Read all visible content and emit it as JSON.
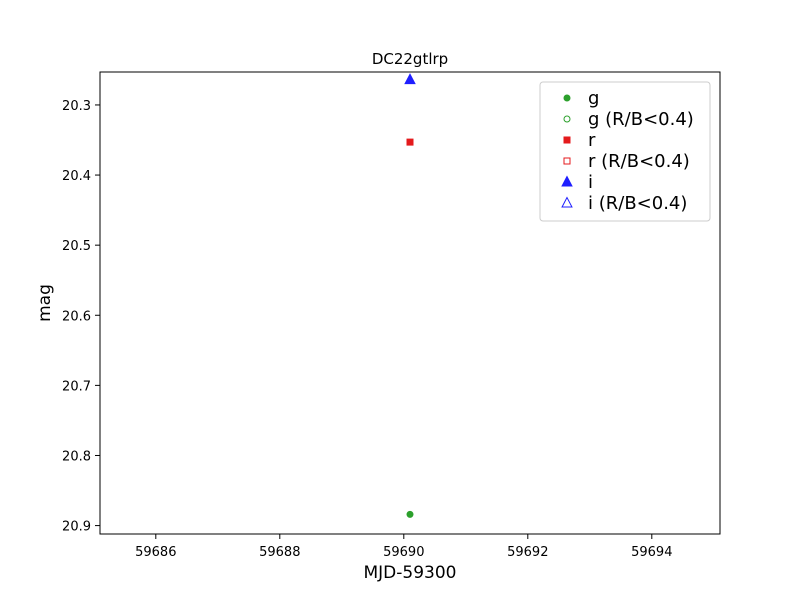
{
  "chart_data": {
    "type": "scatter",
    "title": "DC22gtlrp",
    "xlabel": "MJD-59300",
    "ylabel": "mag",
    "xlim": [
      59685.1,
      59695.1
    ],
    "ylim": [
      20.912,
      20.253
    ],
    "y_inverted": true,
    "xticks": [
      "59686",
      "59688",
      "59690",
      "59692",
      "59694"
    ],
    "yticks": [
      "20.3",
      "20.4",
      "20.5",
      "20.6",
      "20.7",
      "20.8",
      "20.9"
    ],
    "grid": false,
    "legend_position": "top-right",
    "series": [
      {
        "name": "g",
        "color": "#2ca02c",
        "marker": "circle",
        "filled": true,
        "points": [
          {
            "x": 59690.1,
            "y": 20.884
          }
        ]
      },
      {
        "name": "g (R/B<0.4)",
        "color": "#2ca02c",
        "marker": "circle",
        "filled": false,
        "points": []
      },
      {
        "name": "r",
        "color": "#e41a1c",
        "marker": "square",
        "filled": true,
        "points": [
          {
            "x": 59690.1,
            "y": 20.353
          }
        ]
      },
      {
        "name": "r (R/B<0.4)",
        "color": "#e41a1c",
        "marker": "square",
        "filled": false,
        "points": []
      },
      {
        "name": "i",
        "color": "#1f1fff",
        "marker": "triangle",
        "filled": true,
        "points": [
          {
            "x": 59690.1,
            "y": 20.264
          }
        ]
      },
      {
        "name": "i (R/B<0.4)",
        "color": "#1f1fff",
        "marker": "triangle",
        "filled": false,
        "points": []
      }
    ]
  }
}
